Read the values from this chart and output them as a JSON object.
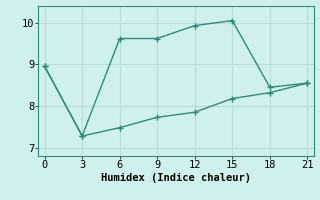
{
  "line1_x": [
    0,
    3,
    6,
    9,
    12,
    15,
    18,
    21
  ],
  "line1_y": [
    8.95,
    7.28,
    9.62,
    9.62,
    9.93,
    10.05,
    8.45,
    8.55
  ],
  "line2_x": [
    0,
    3,
    6,
    9,
    12,
    15,
    18,
    21
  ],
  "line2_y": [
    8.95,
    7.28,
    7.48,
    7.73,
    7.85,
    8.18,
    8.32,
    8.55
  ],
  "color": "#2e8b7a",
  "bg_color": "#cff0ec",
  "grid_color": "#b8ddd8",
  "xlabel": "Humidex (Indice chaleur)",
  "xlim": [
    -0.5,
    21.5
  ],
  "ylim": [
    6.8,
    10.4
  ],
  "xticks": [
    0,
    3,
    6,
    9,
    12,
    15,
    18,
    21
  ],
  "yticks": [
    7,
    8,
    9,
    10
  ],
  "marker": "+",
  "markersize": 5,
  "linewidth": 1.0,
  "font_family": "monospace",
  "font_size": 7.5
}
